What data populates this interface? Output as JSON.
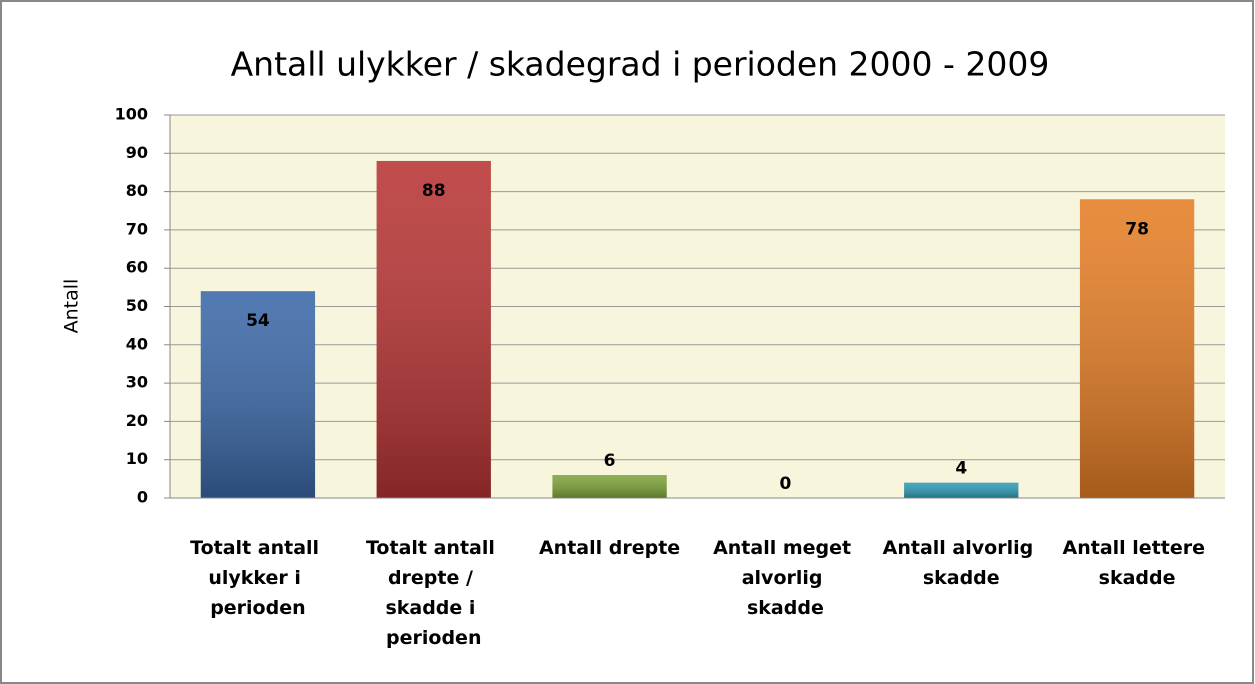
{
  "chart_data": {
    "type": "bar",
    "title": "Antall ulykker / skadegrad i perioden 2000 - 2009",
    "y_label": "Antall",
    "categories": [
      "Totalt antall ulykker i perioden",
      "Totalt antall drepte / skadde i perioden",
      "Antall drepte",
      "Antall meget alvorlig skadde",
      "Antall alvorlig skadde",
      "Antall lettere skadde"
    ],
    "values": [
      54,
      88,
      6,
      0,
      4,
      78
    ],
    "colors": [
      "#3b68a8",
      "#b83434",
      "#7ea33a",
      "#7a5a9a",
      "#2f9bb5",
      "#e57e25"
    ],
    "ylim": [
      0,
      100
    ],
    "yticks": [
      0,
      10,
      20,
      30,
      40,
      50,
      60,
      70,
      80,
      90,
      100
    ],
    "grid": true
  }
}
